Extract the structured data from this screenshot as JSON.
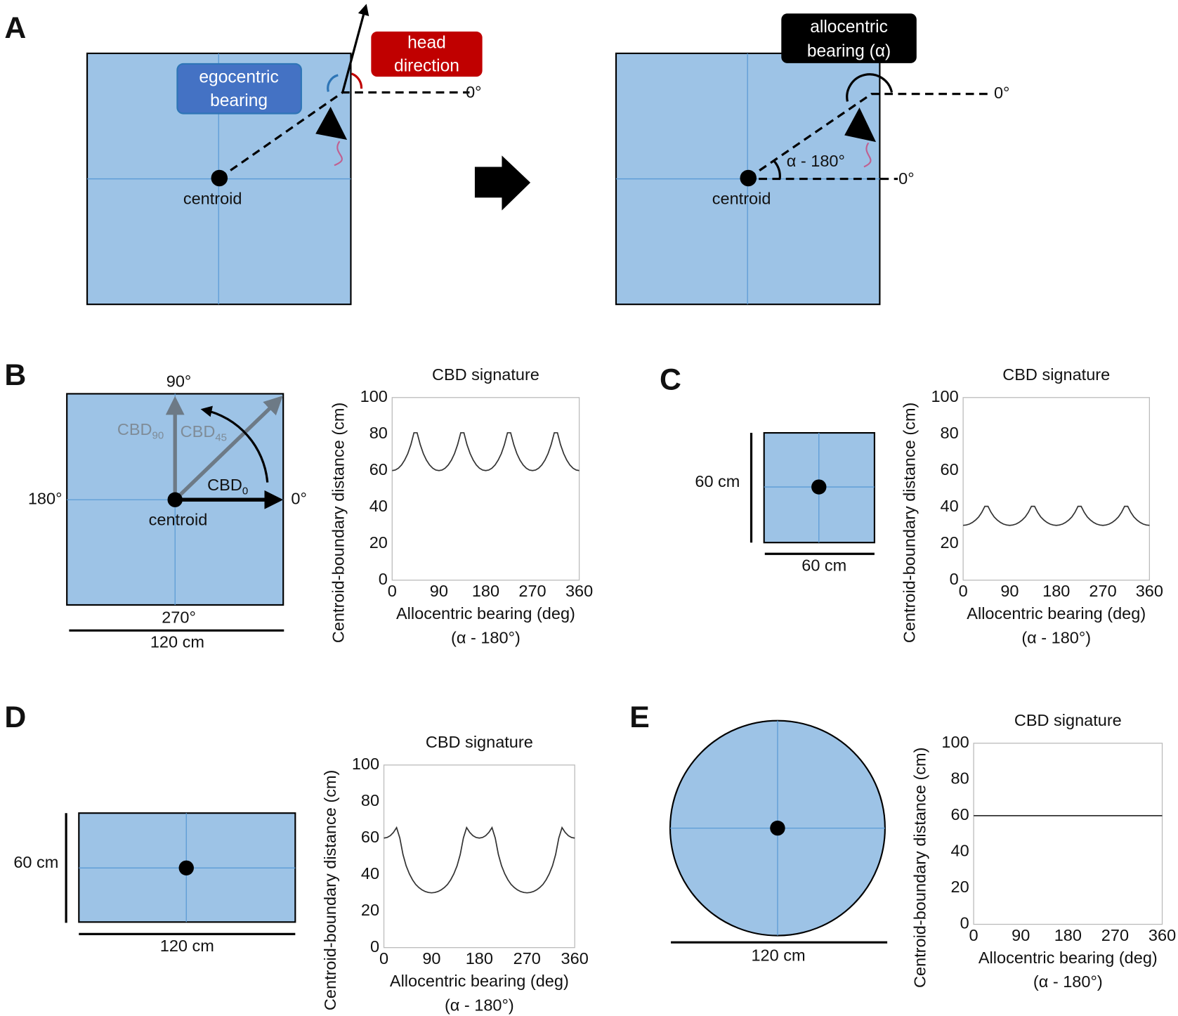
{
  "panel_labels": [
    "A",
    "B",
    "C",
    "D",
    "E"
  ],
  "panel_a": {
    "egocentric_bearing": [
      "egocentric",
      "bearing"
    ],
    "head_direction": [
      "head",
      "direction"
    ],
    "zero_deg": "0°",
    "centroid": "centroid",
    "allocentric_bearing": [
      "allocentric",
      "bearing (α)"
    ],
    "angle_label": "α - 180°"
  },
  "panel_b": {
    "deg_90": "90°",
    "deg_180": "180°",
    "deg_0": "0°",
    "deg_270": "270°",
    "width": "120 cm",
    "centroid": "centroid",
    "cbd_labels": [
      {
        "base": "CBD",
        "sub": "90"
      },
      {
        "base": "CBD",
        "sub": "45"
      },
      {
        "base": "CBD",
        "sub": "0"
      }
    ]
  },
  "panel_c": {
    "height": "60 cm",
    "width": "60 cm"
  },
  "panel_d": {
    "height": "60 cm",
    "width": "120 cm"
  },
  "panel_e": {
    "width": "120 cm"
  },
  "chart_data": [
    {
      "type": "line",
      "title": "CBD signature",
      "y_label": "Centroid-boundary distance (cm)",
      "x_label": "Allocentric bearing (deg)",
      "x_sublabel": "(α - 180°)",
      "color": "#333333",
      "x": [
        0,
        6,
        12,
        18,
        24,
        30,
        36,
        42,
        48,
        54,
        60,
        66,
        72,
        78,
        84,
        90,
        96,
        102,
        108,
        114,
        120,
        126,
        132,
        138,
        144,
        150,
        156,
        162,
        168,
        174,
        180,
        186,
        192,
        198,
        204,
        210,
        216,
        222,
        228,
        234,
        240,
        246,
        252,
        258,
        264,
        270,
        276,
        282,
        288,
        294,
        300,
        306,
        312,
        318,
        324,
        330,
        336,
        342,
        348,
        354,
        360
      ],
      "values": [
        60,
        60.3,
        61.3,
        63.1,
        65.7,
        69.3,
        74.2,
        80.7,
        80.7,
        74.2,
        69.3,
        65.7,
        63.1,
        61.3,
        60.3,
        60,
        60.3,
        61.3,
        63.1,
        65.7,
        69.3,
        74.2,
        80.7,
        80.7,
        74.2,
        69.3,
        65.7,
        63.1,
        61.3,
        60.3,
        60,
        60.3,
        61.3,
        63.1,
        65.7,
        69.3,
        74.2,
        80.7,
        80.7,
        74.2,
        69.3,
        65.7,
        63.1,
        61.3,
        60.3,
        60,
        60.3,
        61.3,
        63.1,
        65.7,
        69.3,
        74.2,
        80.7,
        80.7,
        74.2,
        69.3,
        65.7,
        63.1,
        61.3,
        60.3,
        60
      ],
      "xlim": [
        0,
        360
      ],
      "ylim": [
        0,
        100
      ],
      "xticks": [
        0,
        90,
        180,
        270,
        360
      ],
      "yticks": [
        0,
        20,
        40,
        60,
        80,
        100
      ]
    },
    {
      "type": "line",
      "title": "CBD signature",
      "y_label": "Centroid-boundary distance (cm)",
      "x_label": "Allocentric bearing (deg)",
      "x_sublabel": "(α - 180°)",
      "color": "#333333",
      "x": [
        0,
        6,
        12,
        18,
        24,
        30,
        36,
        42,
        48,
        54,
        60,
        66,
        72,
        78,
        84,
        90,
        96,
        102,
        108,
        114,
        120,
        126,
        132,
        138,
        144,
        150,
        156,
        162,
        168,
        174,
        180,
        186,
        192,
        198,
        204,
        210,
        216,
        222,
        228,
        234,
        240,
        246,
        252,
        258,
        264,
        270,
        276,
        282,
        288,
        294,
        300,
        306,
        312,
        318,
        324,
        330,
        336,
        342,
        348,
        354,
        360
      ],
      "values": [
        30,
        30.2,
        30.7,
        31.6,
        32.9,
        34.6,
        37.1,
        40.4,
        40.4,
        37.1,
        34.6,
        32.9,
        31.6,
        30.7,
        30.2,
        30,
        30.2,
        30.7,
        31.6,
        32.9,
        34.6,
        37.1,
        40.4,
        40.4,
        37.1,
        34.6,
        32.9,
        31.6,
        30.7,
        30.2,
        30,
        30.2,
        30.7,
        31.6,
        32.9,
        34.6,
        37.1,
        40.4,
        40.4,
        37.1,
        34.6,
        32.9,
        31.6,
        30.7,
        30.2,
        30,
        30.2,
        30.7,
        31.6,
        32.9,
        34.6,
        37.1,
        40.4,
        40.4,
        37.1,
        34.6,
        32.9,
        31.6,
        30.7,
        30.2,
        30
      ],
      "xlim": [
        0,
        360
      ],
      "ylim": [
        0,
        100
      ],
      "xticks": [
        0,
        90,
        180,
        270,
        360
      ],
      "yticks": [
        0,
        20,
        40,
        60,
        80,
        100
      ]
    },
    {
      "type": "line",
      "title": "CBD signature",
      "y_label": "Centroid-boundary distance (cm)",
      "x_label": "Allocentric bearing (deg)",
      "x_sublabel": "(α - 180°)",
      "color": "#333333",
      "x": [
        0,
        6,
        12,
        18,
        24,
        30,
        36,
        42,
        48,
        54,
        60,
        66,
        72,
        78,
        84,
        90,
        96,
        102,
        108,
        114,
        120,
        126,
        132,
        138,
        144,
        150,
        156,
        162,
        168,
        174,
        180,
        186,
        192,
        198,
        204,
        210,
        216,
        222,
        228,
        234,
        240,
        246,
        252,
        258,
        264,
        270,
        276,
        282,
        288,
        294,
        300,
        306,
        312,
        318,
        324,
        330,
        336,
        342,
        348,
        354,
        360
      ],
      "values": [
        60,
        60.3,
        61.3,
        63.1,
        65.7,
        60,
        51.0,
        44.8,
        40.4,
        37.1,
        34.6,
        32.9,
        31.6,
        30.7,
        30.2,
        30,
        30.2,
        30.7,
        31.6,
        32.9,
        34.6,
        37.1,
        40.4,
        44.8,
        51.0,
        60,
        65.7,
        63.1,
        61.3,
        60.3,
        60,
        60.3,
        61.3,
        63.1,
        65.7,
        60,
        51.0,
        44.8,
        40.4,
        37.1,
        34.6,
        32.9,
        31.6,
        30.7,
        30.2,
        30,
        30.2,
        30.7,
        31.6,
        32.9,
        34.6,
        37.1,
        40.4,
        44.8,
        51.0,
        60,
        65.7,
        63.1,
        61.3,
        60.3,
        60
      ],
      "xlim": [
        0,
        360
      ],
      "ylim": [
        0,
        100
      ],
      "xticks": [
        0,
        90,
        180,
        270,
        360
      ],
      "yticks": [
        0,
        20,
        40,
        60,
        80,
        100
      ]
    },
    {
      "type": "line",
      "title": "CBD signature",
      "y_label": "Centroid-boundary distance (cm)",
      "x_label": "Allocentric bearing (deg)",
      "x_sublabel": "(α - 180°)",
      "color": "#333333",
      "x": [
        0,
        360
      ],
      "values": [
        60,
        60
      ],
      "xlim": [
        0,
        360
      ],
      "ylim": [
        0,
        100
      ],
      "xticks": [
        0,
        90,
        180,
        270,
        360
      ],
      "yticks": [
        0,
        20,
        40,
        60,
        80,
        100
      ]
    }
  ]
}
